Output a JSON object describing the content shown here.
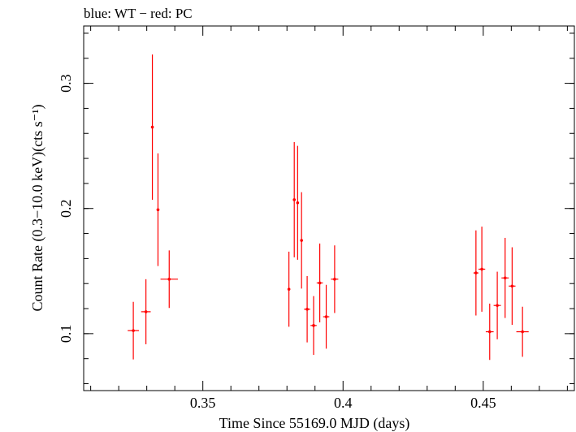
{
  "chart_data": {
    "type": "scatter",
    "title": "blue: WT − red: PC",
    "xlabel": "Time Since 55169.0 MJD (days)",
    "ylabel": "Count Rate (0.3−10.0 keV)(cts s⁻¹)",
    "xlim": [
      0.3075,
      0.4825
    ],
    "ylim": [
      0.0545,
      0.3458
    ],
    "x_ticks": [
      {
        "value": 0.35,
        "label": "0.35"
      },
      {
        "value": 0.4,
        "label": "0.4"
      },
      {
        "value": 0.45,
        "label": "0.45"
      }
    ],
    "y_ticks": [
      {
        "value": 0.1,
        "label": "0.1"
      },
      {
        "value": 0.2,
        "label": "0.2"
      },
      {
        "value": 0.3,
        "label": "0.3"
      }
    ],
    "x_minor_step": 0.01,
    "y_minor_step": 0.02,
    "grid": false,
    "color": "#ff0000",
    "series": [
      {
        "points": [
          {
            "x": 0.3252,
            "xerr": 0.002,
            "y": 0.1024,
            "yerr": 0.023
          },
          {
            "x": 0.3297,
            "xerr": 0.0017,
            "y": 0.1175,
            "yerr": 0.026
          },
          {
            "x": 0.332,
            "xerr": 0.0004,
            "y": 0.265,
            "yerr": 0.058
          },
          {
            "x": 0.334,
            "xerr": 0.0005,
            "y": 0.199,
            "yerr": 0.045
          },
          {
            "x": 0.338,
            "xerr": 0.0031,
            "y": 0.1435,
            "yerr": 0.023
          },
          {
            "x": 0.3807,
            "xerr": 0.0004,
            "y": 0.1355,
            "yerr": 0.03
          },
          {
            "x": 0.3826,
            "xerr": 0.0004,
            "y": 0.207,
            "yerr": 0.046
          },
          {
            "x": 0.3838,
            "xerr": 0.0004,
            "y": 0.2045,
            "yerr": 0.0455
          },
          {
            "x": 0.3852,
            "xerr": 0.0004,
            "y": 0.1745,
            "yerr": 0.0385
          },
          {
            "x": 0.3872,
            "xerr": 0.0011,
            "y": 0.1195,
            "yerr": 0.0265
          },
          {
            "x": 0.3895,
            "xerr": 0.0011,
            "y": 0.1065,
            "yerr": 0.0235
          },
          {
            "x": 0.3917,
            "xerr": 0.0011,
            "y": 0.1405,
            "yerr": 0.0315
          },
          {
            "x": 0.394,
            "xerr": 0.0011,
            "y": 0.1135,
            "yerr": 0.0255
          },
          {
            "x": 0.397,
            "xerr": 0.0013,
            "y": 0.1435,
            "yerr": 0.027
          },
          {
            "x": 0.4474,
            "xerr": 0.0009,
            "y": 0.1485,
            "yerr": 0.034
          },
          {
            "x": 0.4495,
            "xerr": 0.0012,
            "y": 0.1515,
            "yerr": 0.034
          },
          {
            "x": 0.4523,
            "xerr": 0.0014,
            "y": 0.1015,
            "yerr": 0.0225
          },
          {
            "x": 0.455,
            "xerr": 0.0013,
            "y": 0.1225,
            "yerr": 0.027
          },
          {
            "x": 0.4578,
            "xerr": 0.0013,
            "y": 0.1445,
            "yerr": 0.032
          },
          {
            "x": 0.4603,
            "xerr": 0.0012,
            "y": 0.138,
            "yerr": 0.031
          },
          {
            "x": 0.464,
            "xerr": 0.0022,
            "y": 0.1015,
            "yerr": 0.02
          }
        ]
      }
    ]
  }
}
